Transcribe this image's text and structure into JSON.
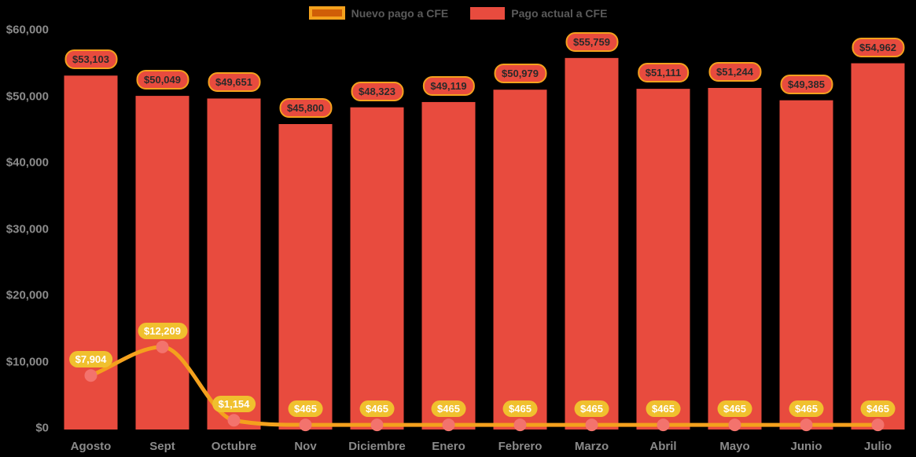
{
  "legend": {
    "items": [
      {
        "label": "Nuevo pago a CFE",
        "type": "line",
        "swatch_fill": "#d05e07",
        "swatch_border": "#f4a11d"
      },
      {
        "label": "Pago actual a CFE",
        "type": "bar",
        "swatch_fill": "#e84b3e"
      }
    ]
  },
  "chart_data": {
    "type": "combo",
    "title": "",
    "xlabel": "",
    "ylabel": "",
    "background": "#000000",
    "grid": false,
    "legend_position": "top",
    "categories": [
      "Agosto",
      "Sept",
      "Octubre",
      "Nov",
      "Diciembre",
      "Enero",
      "Febrero",
      "Marzo",
      "Abril",
      "Mayo",
      "Junio",
      "Julio"
    ],
    "series": [
      {
        "name": "Pago actual a CFE",
        "type": "bar",
        "color": "#e84b3e",
        "values": [
          53103,
          50049,
          49651,
          45800,
          48323,
          49119,
          50979,
          55759,
          51111,
          51244,
          49385,
          54962
        ],
        "labels": [
          "$53,103",
          "$50,049",
          "$49,651",
          "$45,800",
          "$48,323",
          "$49,119",
          "$50,979",
          "$55,759",
          "$51,111",
          "$51,244",
          "$49,385",
          "$54,962"
        ],
        "label_style": {
          "fill": "#e84b3e",
          "border": "#f4a11d",
          "text_color": "#2a2a2a"
        }
      },
      {
        "name": "Nuevo pago a CFE",
        "type": "line",
        "color": "#f4a11d",
        "marker_color": "#f3736d",
        "values": [
          7904,
          12209,
          1154,
          465,
          465,
          465,
          465,
          465,
          465,
          465,
          465,
          465
        ],
        "labels": [
          "$7,904",
          "$12,209",
          "$1,154",
          "$465",
          "$465",
          "$465",
          "$465",
          "$465",
          "$465",
          "$465",
          "$465",
          "$465"
        ],
        "label_style": {
          "fill": "#f0c02e",
          "text_color": "#ffffff"
        }
      }
    ],
    "y_axis": {
      "min": 0,
      "max": 60000,
      "ticks": [
        0,
        10000,
        20000,
        30000,
        40000,
        50000,
        60000
      ],
      "tick_labels": [
        "$0",
        "$10,000",
        "$20,000",
        "$30,000",
        "$40,000",
        "$50,000",
        "$60,000"
      ]
    }
  }
}
